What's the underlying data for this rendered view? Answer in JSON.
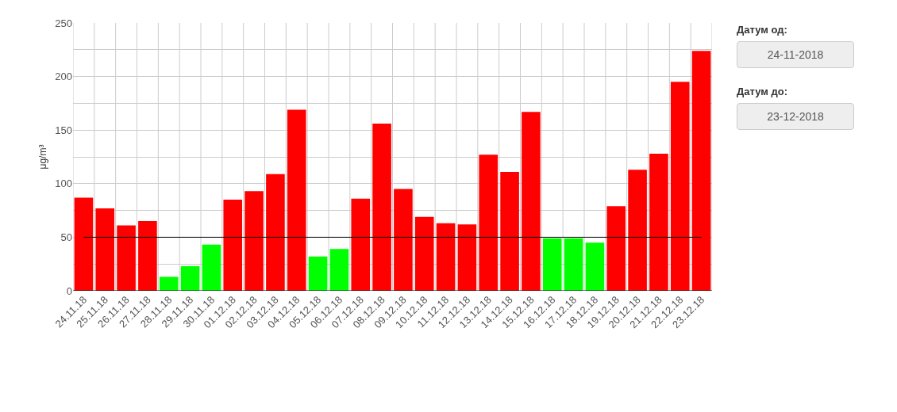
{
  "chart_data": {
    "type": "bar",
    "ylabel": "μg/m³",
    "categories": [
      "24.11.18",
      "25.11.18",
      "26.11.18",
      "27.11.18",
      "28.11.18",
      "29.11.18",
      "30.11.18",
      "01.12.18",
      "02.12.18",
      "03.12.18",
      "04.12.18",
      "05.12.18",
      "06.12.18",
      "07.12.18",
      "08.12.18",
      "09.12.18",
      "10.12.18",
      "11.12.18",
      "12.12.18",
      "13.12.18",
      "14.12.18",
      "15.12.18",
      "16.12.18",
      "17.12.18",
      "18.12.18",
      "19.12.18",
      "20.12.18",
      "21.12.18",
      "22.12.18",
      "23.12.18"
    ],
    "values": [
      87,
      77,
      61,
      65,
      13,
      23,
      43,
      85,
      93,
      109,
      169,
      32,
      39,
      86,
      156,
      95,
      69,
      63,
      62,
      127,
      111,
      167,
      49,
      49,
      45,
      79,
      113,
      128,
      195,
      224
    ],
    "colors": [
      "#ff0000",
      "#ff0000",
      "#ff0000",
      "#ff0000",
      "#00ff00",
      "#00ff00",
      "#00ff00",
      "#ff0000",
      "#ff0000",
      "#ff0000",
      "#ff0000",
      "#00ff00",
      "#00ff00",
      "#ff0000",
      "#ff0000",
      "#ff0000",
      "#ff0000",
      "#ff0000",
      "#ff0000",
      "#ff0000",
      "#ff0000",
      "#ff0000",
      "#00ff00",
      "#00ff00",
      "#00ff00",
      "#ff0000",
      "#ff0000",
      "#ff0000",
      "#ff0000",
      "#ff0000"
    ],
    "ylim": [
      0,
      250
    ],
    "yticks": [
      0,
      {
        "value": 25,
        "label": null
      },
      50,
      {
        "value": 75,
        "label": null
      },
      100,
      {
        "value": 125,
        "label": null
      },
      150,
      {
        "value": 175,
        "label": null
      },
      200,
      {
        "value": 225,
        "label": null
      },
      250
    ],
    "grid": true,
    "ref_lines": [
      {
        "axis": "y",
        "value": 50,
        "color": "#000000"
      }
    ],
    "annotations": [
      "Датум од:",
      "24-11-2018",
      "Датум до:",
      "23-12-2018"
    ]
  }
}
